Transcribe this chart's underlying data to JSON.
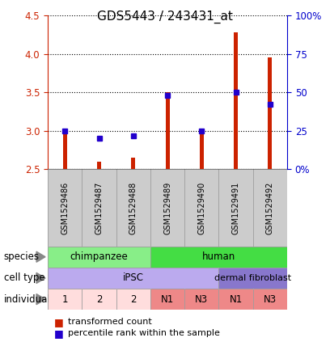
{
  "title": "GDS5443 / 243431_at",
  "samples": [
    "GSM1529486",
    "GSM1529487",
    "GSM1529488",
    "GSM1529489",
    "GSM1529490",
    "GSM1529491",
    "GSM1529492"
  ],
  "transformed_counts": [
    3.0,
    2.6,
    2.65,
    3.5,
    2.98,
    4.28,
    3.95
  ],
  "percentile_ranks": [
    25,
    20,
    22,
    48,
    25,
    50,
    42
  ],
  "ylim_left": [
    2.5,
    4.5
  ],
  "ylim_right": [
    0,
    100
  ],
  "yticks_left": [
    2.5,
    3.0,
    3.5,
    4.0,
    4.5
  ],
  "yticks_right": [
    0,
    25,
    50,
    75,
    100
  ],
  "bar_color": "#cc2200",
  "dot_color": "#2200cc",
  "baseline": 2.5,
  "species": [
    {
      "label": "chimpanzee",
      "start": 0,
      "end": 3,
      "color": "#88ee88"
    },
    {
      "label": "human",
      "start": 3,
      "end": 7,
      "color": "#44dd44"
    }
  ],
  "cell_type": [
    {
      "label": "iPSC",
      "start": 0,
      "end": 5,
      "color": "#bbaaee"
    },
    {
      "label": "dermal fibroblast",
      "start": 5,
      "end": 7,
      "color": "#8877cc"
    }
  ],
  "individual": [
    {
      "label": "1",
      "start": 0,
      "end": 1,
      "color": "#ffdddd"
    },
    {
      "label": "2",
      "start": 1,
      "end": 2,
      "color": "#ffdddd"
    },
    {
      "label": "2",
      "start": 2,
      "end": 3,
      "color": "#ffdddd"
    },
    {
      "label": "N1",
      "start": 3,
      "end": 4,
      "color": "#ee8888"
    },
    {
      "label": "N3",
      "start": 4,
      "end": 5,
      "color": "#ee8888"
    },
    {
      "label": "N1",
      "start": 5,
      "end": 6,
      "color": "#ee8888"
    },
    {
      "label": "N3",
      "start": 6,
      "end": 7,
      "color": "#ee8888"
    }
  ],
  "left_axis_color": "#cc2200",
  "right_axis_color": "#0000cc",
  "background_color": "#ffffff",
  "sample_box_color": "#cccccc",
  "sample_box_edge": "#888888",
  "arrow_color": "#888888"
}
